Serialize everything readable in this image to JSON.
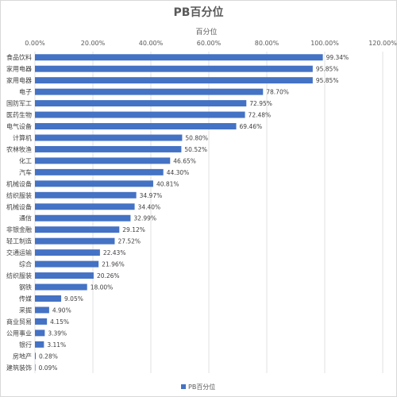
{
  "chart_data": {
    "type": "bar",
    "orientation": "horizontal",
    "title": "PB百分位",
    "xlabel": "百分位",
    "xaxis_position": "top",
    "xlim": [
      0,
      120
    ],
    "xticks": [
      "0.00%",
      "20.00%",
      "40.00%",
      "60.00%",
      "80.00%",
      "100.00%",
      "120.00%"
    ],
    "grid": true,
    "legend": "bottom",
    "categories": [
      "食品饮料",
      "家用电器",
      "家用电器",
      "电子",
      "国防军工",
      "医药生物",
      "电气设备",
      "计算机",
      "农林牧渔",
      "化工",
      "汽车",
      "机械设备",
      "纺织服装",
      "机械设备",
      "通信",
      "非银金融",
      "轻工制造",
      "交通运输",
      "综合",
      "纺织服装",
      "钢铁",
      "传媒",
      "采掘",
      "商业贸易",
      "公用事业",
      "银行",
      "房地产",
      "建筑装饰"
    ],
    "series": [
      {
        "name": "PB百分位",
        "color": "#4472c4",
        "values": [
          99.34,
          95.85,
          95.85,
          78.7,
          72.95,
          72.48,
          69.46,
          50.8,
          50.52,
          46.65,
          44.3,
          40.81,
          34.97,
          34.4,
          32.99,
          29.12,
          27.52,
          22.43,
          21.96,
          20.26,
          18.0,
          9.05,
          4.9,
          4.15,
          3.39,
          3.11,
          0.28,
          0.09
        ],
        "labels": [
          "99.34%",
          "95.85%",
          "95.85%",
          "78.70%",
          "72.95%",
          "72.48%",
          "69.46%",
          "50.80%",
          "50.52%",
          "46.65%",
          "44.30%",
          "40.81%",
          "34.97%",
          "34.40%",
          "32.99%",
          "29.12%",
          "27.52%",
          "22.43%",
          "21.96%",
          "20.26%",
          "18.00%",
          "9.05%",
          "4.90%",
          "4.15%",
          "3.39%",
          "3.11%",
          "0.28%",
          "0.09%"
        ]
      }
    ]
  }
}
